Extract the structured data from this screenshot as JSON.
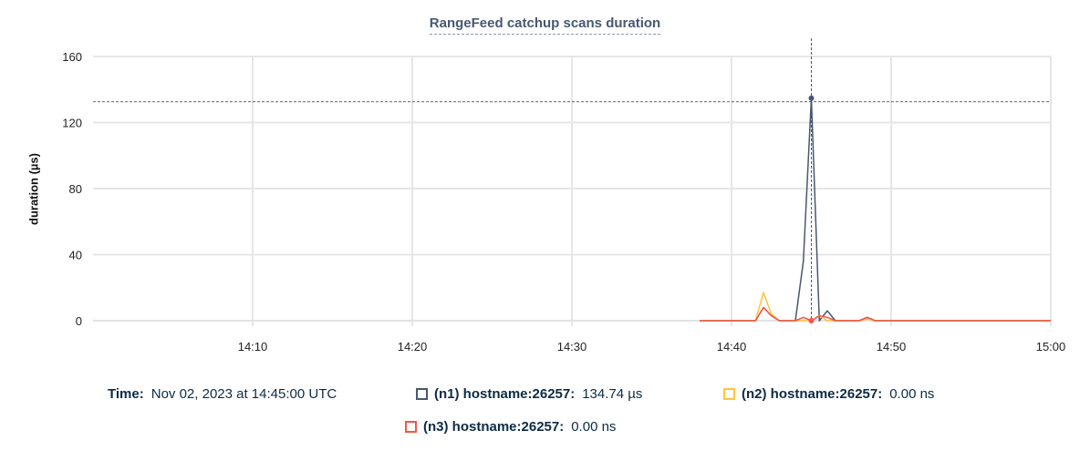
{
  "chart_data": {
    "type": "line",
    "title": "RangeFeed catchup scans duration",
    "ylabel": "duration (µs)",
    "xlabel": "",
    "ylim": [
      0,
      160
    ],
    "yticks": [
      "0",
      "40",
      "80",
      "120",
      "160"
    ],
    "xlim": [
      "14:00",
      "15:00"
    ],
    "xticks": [
      "14:10",
      "14:20",
      "14:30",
      "14:40",
      "14:50",
      "15:00"
    ],
    "grid": true,
    "x": [
      "14:38:00",
      "14:38:30",
      "14:39:00",
      "14:39:30",
      "14:40:00",
      "14:40:30",
      "14:41:00",
      "14:41:30",
      "14:42:00",
      "14:42:30",
      "14:43:00",
      "14:43:30",
      "14:44:00",
      "14:44:30",
      "14:45:00",
      "14:45:30",
      "14:46:00",
      "14:46:30",
      "14:47:00",
      "14:47:30",
      "14:48:00",
      "14:48:30",
      "14:49:00",
      "14:49:30",
      "14:50:00",
      "14:50:30",
      "14:51:00",
      "14:51:30",
      "14:52:00",
      "14:52:30",
      "14:53:00",
      "14:53:30",
      "14:54:00",
      "14:54:30",
      "14:55:00",
      "14:55:30",
      "14:56:00",
      "14:56:30",
      "14:57:00",
      "14:57:30",
      "14:58:00",
      "14:58:30",
      "14:59:00",
      "14:59:30",
      "15:00:00"
    ],
    "series": [
      {
        "name": "(n1) hostname:26257",
        "color": "#475872",
        "values": [
          0,
          0,
          0,
          0,
          0,
          0,
          0,
          0,
          8,
          3,
          0,
          0,
          0,
          36,
          134.74,
          0,
          6,
          0,
          0,
          0,
          0,
          2,
          0,
          0,
          0,
          0,
          0,
          0,
          0,
          0,
          0,
          0,
          0,
          0,
          0,
          0,
          0,
          0,
          0,
          0,
          0,
          0,
          0,
          0,
          0
        ]
      },
      {
        "name": "(n2) hostname:26257",
        "color": "#ffc53d",
        "values": [
          0,
          0,
          0,
          0,
          0,
          0,
          0,
          0,
          17,
          4,
          0,
          0,
          0,
          0,
          0,
          3,
          0,
          0,
          0,
          0,
          0,
          1,
          0,
          0,
          0,
          0,
          0,
          0,
          0,
          0,
          0,
          0,
          0,
          0,
          0,
          0,
          0,
          0,
          0,
          0,
          0,
          0,
          0,
          0,
          0
        ]
      },
      {
        "name": "(n3) hostname:26257",
        "color": "#f2574a",
        "values": [
          0,
          0,
          0,
          0,
          0,
          0,
          0,
          0,
          8,
          3,
          0,
          0,
          0,
          2,
          0,
          3,
          2,
          0,
          0,
          0,
          0,
          2,
          0,
          0,
          0,
          0,
          0,
          0,
          0,
          0,
          0,
          0,
          0,
          0,
          0,
          0,
          0,
          0,
          0,
          0,
          0,
          0,
          0,
          0,
          0
        ]
      }
    ],
    "hover_time": "14:45:00"
  },
  "legend": {
    "time_label": "Time:",
    "time_value": "Nov 02, 2023 at 14:45:00 UTC",
    "items": [
      {
        "label": "(n1) hostname:26257:",
        "value": "134.74 µs",
        "color": "#475872"
      },
      {
        "label": "(n2) hostname:26257:",
        "value": "0.00 ns",
        "color": "#ffc53d"
      },
      {
        "label": "(n3) hostname:26257:",
        "value": "0.00 ns",
        "color": "#f2574a"
      }
    ]
  }
}
